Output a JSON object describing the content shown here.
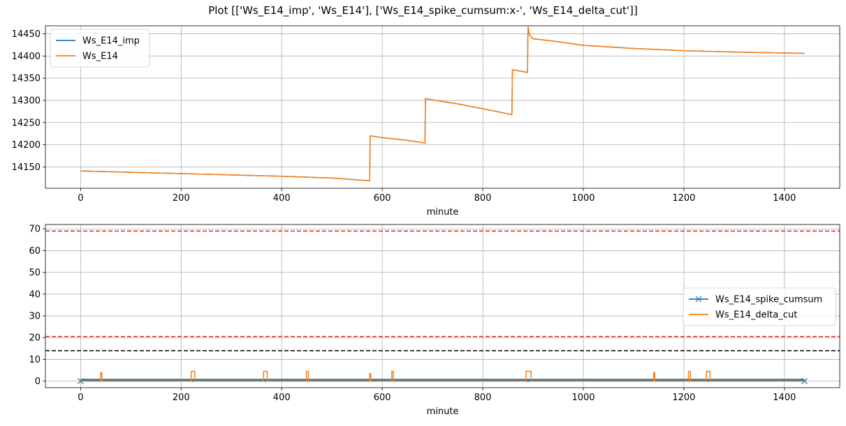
{
  "figure": {
    "title": "Plot [['Ws_E14_imp', 'Ws_E14'], ['Ws_E14_spike_cumsum:x-', 'Ws_E14_delta_cut']]"
  },
  "colors": {
    "blue": "#1f77b4",
    "orange": "#ff7f0e",
    "red": "#d62728",
    "black": "#000000",
    "grid": "#b0b0b0"
  },
  "chart_data": [
    {
      "type": "line",
      "xlabel": "minute",
      "ylabel": "",
      "xlim": [
        -70,
        1510
      ],
      "ylim": [
        14102,
        14468
      ],
      "xticks": [
        0,
        200,
        400,
        600,
        800,
        1000,
        1200,
        1400
      ],
      "yticks": [
        14150,
        14200,
        14250,
        14300,
        14350,
        14400,
        14450
      ],
      "grid": true,
      "legend": "top-left",
      "series": [
        {
          "name": "Ws_E14_imp",
          "color": "#1f77b4",
          "x": [
            0,
            100,
            200,
            300,
            400,
            500,
            575,
            576,
            600,
            650,
            685,
            686,
            700,
            750,
            800,
            858,
            859,
            889,
            890,
            893,
            900,
            950,
            1000,
            1100,
            1200,
            1300,
            1440
          ],
          "y": [
            14141,
            14138,
            14135,
            14132,
            14129,
            14125,
            14119,
            14220,
            14216,
            14210,
            14204,
            14304,
            14301,
            14292,
            14281,
            14268,
            14369,
            14363,
            14466,
            14447,
            14439,
            14432,
            14424,
            14417,
            14412,
            14409,
            14406
          ]
        },
        {
          "name": "Ws_E14",
          "color": "#ff7f0e",
          "x": [
            0,
            100,
            200,
            300,
            400,
            500,
            575,
            576,
            600,
            650,
            685,
            686,
            700,
            750,
            800,
            858,
            859,
            889,
            890,
            893,
            900,
            950,
            1000,
            1100,
            1200,
            1300,
            1440
          ],
          "y": [
            14141,
            14138,
            14135,
            14132,
            14129,
            14125,
            14119,
            14220,
            14216,
            14210,
            14204,
            14304,
            14301,
            14292,
            14281,
            14268,
            14369,
            14363,
            14466,
            14447,
            14439,
            14432,
            14424,
            14417,
            14412,
            14409,
            14406
          ]
        }
      ]
    },
    {
      "type": "line",
      "xlabel": "minute",
      "ylabel": "",
      "xlim": [
        -70,
        1510
      ],
      "ylim": [
        -3,
        72
      ],
      "xticks": [
        0,
        200,
        400,
        600,
        800,
        1000,
        1200,
        1400
      ],
      "yticks": [
        0,
        10,
        20,
        30,
        40,
        50,
        60,
        70
      ],
      "grid": true,
      "legend": "center-right",
      "hlines": [
        {
          "y": 69,
          "color": "#d62728",
          "style": "dashed"
        },
        {
          "y": 20.5,
          "color": "#d62728",
          "style": "dashed"
        },
        {
          "y": 14,
          "color": "#000000",
          "style": "dashed"
        }
      ],
      "series": [
        {
          "name": "Ws_E14_spike_cumsum",
          "color": "#1f77b4",
          "marker": "x",
          "x_range": [
            0,
            1440
          ],
          "level_a": 0,
          "level_b": 0.8
        },
        {
          "name": "Ws_E14_delta_cut",
          "color": "#ff7f0e",
          "pulses": [
            {
              "x0": 40,
              "x1": 42,
              "h": 4
            },
            {
              "x0": 220,
              "x1": 227,
              "h": 4.5
            },
            {
              "x0": 364,
              "x1": 371,
              "h": 4.5
            },
            {
              "x0": 449,
              "x1": 453,
              "h": 4.5
            },
            {
              "x0": 575,
              "x1": 577,
              "h": 3.5
            },
            {
              "x0": 619,
              "x1": 622,
              "h": 4.5
            },
            {
              "x0": 886,
              "x1": 896,
              "h": 4.5
            },
            {
              "x0": 1140,
              "x1": 1142,
              "h": 4
            },
            {
              "x0": 1209,
              "x1": 1213,
              "h": 4.5
            },
            {
              "x0": 1245,
              "x1": 1252,
              "h": 4.5
            }
          ]
        }
      ]
    }
  ]
}
